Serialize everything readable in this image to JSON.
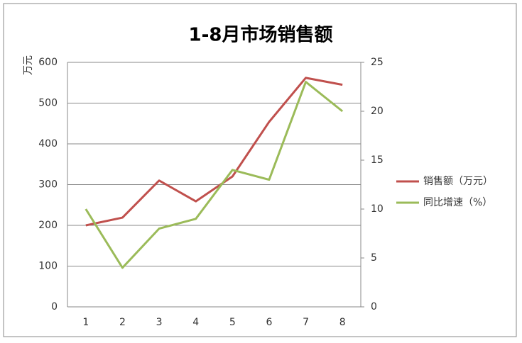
{
  "chart_data": {
    "type": "line",
    "title": "1-8月市场销售额",
    "y_label": "万元",
    "categories": [
      1,
      2,
      3,
      4,
      5,
      6,
      7,
      8
    ],
    "series": [
      {
        "name": "销售额（万元）",
        "color": "#c0504d",
        "values": [
          200,
          219,
          310,
          259,
          320,
          454,
          562,
          545
        ]
      },
      {
        "name": "同比增速（%）",
        "color": "#9bbb59",
        "axis": "y2",
        "values": [
          10,
          4,
          8,
          9,
          14,
          13,
          23,
          20
        ]
      }
    ],
    "ylim": [
      0,
      600
    ],
    "yticks": [
      0,
      100,
      200,
      300,
      400,
      500,
      600
    ],
    "y2lim": [
      0,
      25
    ],
    "y2ticks": [
      0,
      5,
      10,
      15,
      20,
      25
    ],
    "grid": true,
    "legend": "right"
  }
}
